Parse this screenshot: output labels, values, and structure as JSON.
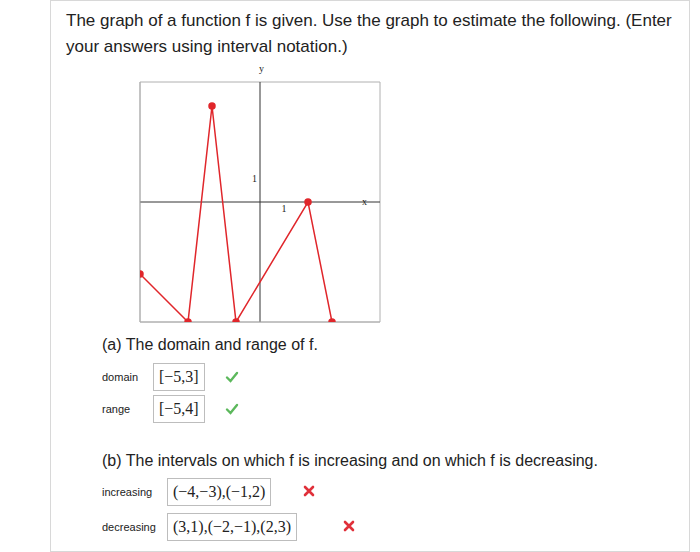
{
  "header": {
    "text": "The graph of a function f is given. Use the graph to estimate the following. (Enter your answers using interval notation.)"
  },
  "chart_data": {
    "type": "line",
    "x": [
      -5,
      -3,
      -2,
      -1,
      2,
      3
    ],
    "values": [
      -3,
      -5,
      4,
      -5,
      0,
      -5
    ],
    "xlim": [
      -5,
      5
    ],
    "ylim": [
      -5,
      5
    ],
    "xticks": [
      -5,
      -4,
      -3,
      -2,
      -1,
      0,
      1,
      2,
      3,
      4,
      5
    ],
    "yticks": [
      -5,
      -4,
      -3,
      -2,
      -1,
      0,
      1,
      2,
      3,
      4,
      5
    ],
    "grid": true,
    "tick_labels": false,
    "color": "#e0262b",
    "marker": "circle",
    "xlabel": "x",
    "ylabel": "y",
    "annotations": [
      {
        "text": "1",
        "x": 1,
        "y": 0
      },
      {
        "text": "1",
        "x": 0,
        "y": 1
      }
    ]
  },
  "parts": [
    {
      "title": "(a) The domain and range of f.",
      "fields": [
        {
          "label": "domain",
          "answer": "[−5,3]",
          "correct": true
        },
        {
          "label": "range",
          "answer": "[−5,4]",
          "correct": true
        }
      ]
    },
    {
      "title": "(b) The intervals on which f is increasing and on which f is decreasing.",
      "fields": [
        {
          "label": "increasing",
          "answer": "(−4,−3),(−1,2)",
          "correct": false
        },
        {
          "label": "decreasing",
          "answer": "(3,1),(−2,−1),(2,3)",
          "correct": false
        }
      ]
    }
  ]
}
